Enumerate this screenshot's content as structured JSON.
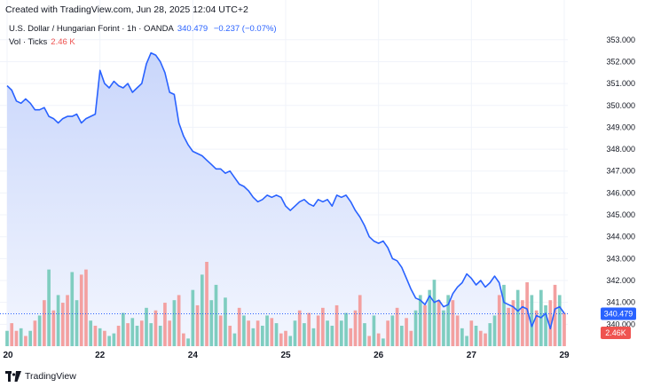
{
  "header": {
    "note": "Created with TradingView.com, Jun 28, 2025 12:04 UTC+2",
    "symbol": "U.S. Dollar / Hungarian Forint · 1h · OANDA",
    "last_price": "340.479",
    "change": "−0.237 (−0.07%)",
    "vol_label": "Vol · Ticks",
    "vol_value": "2.46 K"
  },
  "footer": {
    "brand": "TradingView"
  },
  "colors": {
    "line": "#2962ff",
    "area_top": "#c9d6fb",
    "area_bottom": "#f3f6fe",
    "vol_up": "#7fcdc0",
    "vol_down": "#f3a0a0",
    "price_tag": "#2962ff",
    "vol_tag": "#ef5350",
    "grid": "#f0f3fa"
  },
  "chart_data": {
    "type": "area",
    "title": "U.S. Dollar / Hungarian Forint · 1h · OANDA",
    "xlabel": "",
    "ylabel": "",
    "x_ticks": [
      "20",
      "22",
      "24",
      "25",
      "26",
      "27",
      "29"
    ],
    "x_tick_index": [
      0,
      20,
      40,
      60,
      80,
      100,
      120
    ],
    "y_ticks": [
      "353.000",
      "352.000",
      "351.000",
      "350.000",
      "349.000",
      "348.000",
      "347.000",
      "346.000",
      "345.000",
      "344.000",
      "343.000",
      "342.000",
      "341.000",
      "340.000"
    ],
    "ylim": [
      339.0,
      353.6
    ],
    "current_price": 340.479,
    "current_price_label": "340.479",
    "volume_label": "2.46K",
    "grid": true,
    "series": [
      {
        "name": "Close",
        "values": [
          350.9,
          350.7,
          350.2,
          350.1,
          350.3,
          350.1,
          349.8,
          349.8,
          349.9,
          349.5,
          349.4,
          349.2,
          349.4,
          349.5,
          349.5,
          349.6,
          349.2,
          349.4,
          349.5,
          349.6,
          351.6,
          351.0,
          350.8,
          351.1,
          350.9,
          350.8,
          351.0,
          350.6,
          350.8,
          351.0,
          351.9,
          352.4,
          352.3,
          352.0,
          351.5,
          350.6,
          350.5,
          349.2,
          348.6,
          348.2,
          347.9,
          347.8,
          347.7,
          347.5,
          347.3,
          347.1,
          347.1,
          346.9,
          347.0,
          346.7,
          346.4,
          346.3,
          346.1,
          345.8,
          345.6,
          345.7,
          345.9,
          345.8,
          345.9,
          345.8,
          345.4,
          345.2,
          345.4,
          345.6,
          345.7,
          345.5,
          345.4,
          345.7,
          345.6,
          345.7,
          345.4,
          345.9,
          345.8,
          345.9,
          345.6,
          345.2,
          344.9,
          344.5,
          344.0,
          343.8,
          343.7,
          343.8,
          343.5,
          343.0,
          342.9,
          342.6,
          342.1,
          341.6,
          341.2,
          341.1,
          340.9,
          341.3,
          341.0,
          341.1,
          340.8,
          340.9,
          341.4,
          341.7,
          341.9,
          342.3,
          342.1,
          341.8,
          342.0,
          341.7,
          341.9,
          342.2,
          341.9,
          341.0,
          340.9,
          340.8,
          340.6,
          340.8,
          340.7,
          339.9,
          340.4,
          340.3,
          340.5,
          339.8,
          340.7,
          340.8,
          340.5
        ]
      },
      {
        "name": "Vol",
        "values": [
          6,
          9,
          6,
          7,
          4,
          6,
          10,
          12,
          18,
          30,
          14,
          20,
          17,
          20,
          29,
          18,
          28,
          30,
          10,
          8,
          7,
          6,
          4,
          5,
          8,
          13,
          9,
          11,
          8,
          10,
          15,
          9,
          14,
          8,
          17,
          10,
          18,
          20,
          5,
          3,
          22,
          16,
          28,
          33,
          18,
          24,
          12,
          19,
          8,
          5,
          15,
          12,
          10,
          7,
          10,
          8,
          12,
          11,
          9,
          5,
          6,
          4,
          10,
          14,
          9,
          13,
          7,
          12,
          15,
          10,
          8,
          16,
          10,
          13,
          7,
          14,
          20,
          9,
          4,
          12,
          5,
          3,
          10,
          12,
          15,
          8,
          11,
          6,
          14,
          20,
          16,
          22,
          26,
          18,
          14,
          20,
          18,
          12,
          7,
          4,
          10,
          8,
          6,
          5,
          9,
          12,
          20,
          24,
          15,
          18,
          22,
          18,
          25,
          20,
          14,
          22,
          16,
          18,
          24,
          20,
          13
        ]
      }
    ],
    "volume_direction": [
      "u",
      "d",
      "d",
      "u",
      "d",
      "u",
      "d",
      "u",
      "d",
      "u",
      "d",
      "u",
      "d",
      "d",
      "u",
      "u",
      "d",
      "d",
      "u",
      "d",
      "u",
      "d",
      "u",
      "u",
      "d",
      "u",
      "d",
      "u",
      "u",
      "d",
      "u",
      "u",
      "d",
      "u",
      "d",
      "d",
      "u",
      "d",
      "d",
      "u",
      "u",
      "d",
      "u",
      "d",
      "u",
      "u",
      "d",
      "u",
      "d",
      "u",
      "d",
      "u",
      "d",
      "u",
      "d",
      "u",
      "u",
      "d",
      "u",
      "d",
      "d",
      "u",
      "u",
      "d",
      "u",
      "d",
      "u",
      "d",
      "d",
      "u",
      "u",
      "d",
      "u",
      "u",
      "d",
      "d",
      "d",
      "u",
      "d",
      "u",
      "d",
      "u",
      "d",
      "u",
      "d",
      "u",
      "d",
      "d",
      "u",
      "u",
      "d",
      "u",
      "u",
      "d",
      "u",
      "u",
      "d",
      "d",
      "u",
      "u",
      "d",
      "u",
      "d",
      "d",
      "u",
      "u",
      "d",
      "u",
      "d",
      "d",
      "u",
      "d",
      "d",
      "u",
      "d",
      "u",
      "u",
      "d",
      "d",
      "u",
      "d"
    ]
  }
}
